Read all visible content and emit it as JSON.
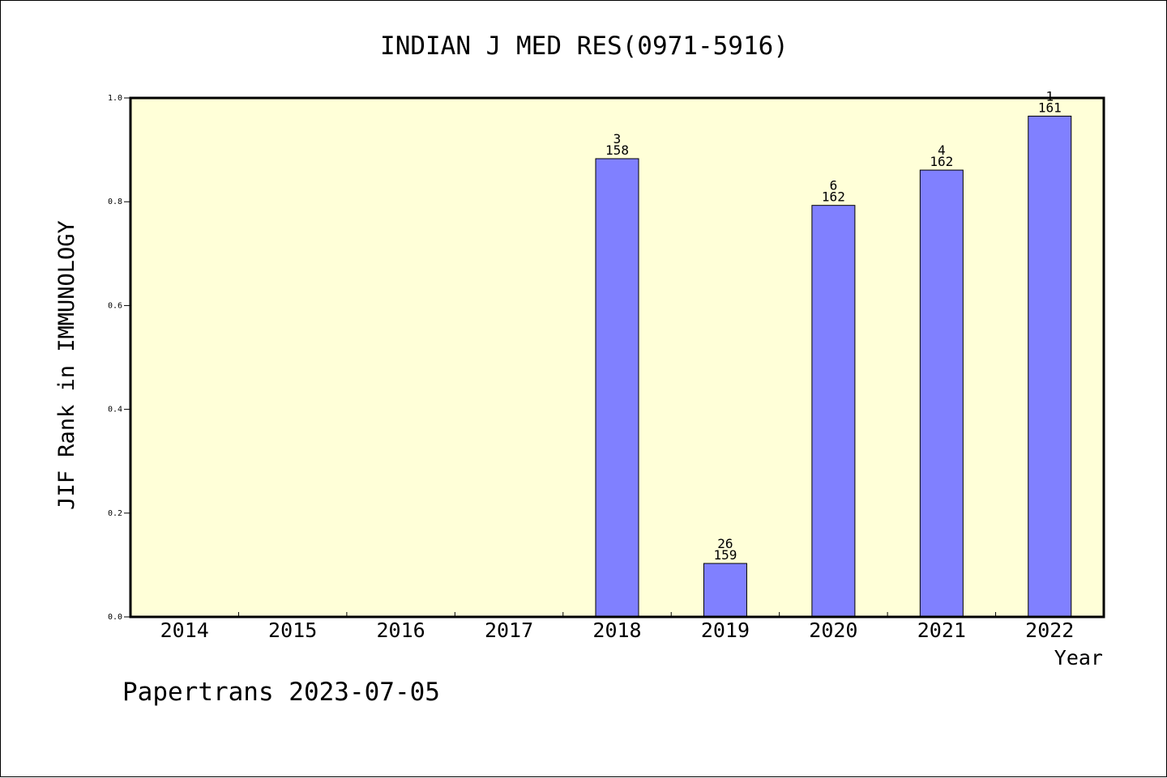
{
  "chart_data": {
    "type": "bar",
    "title": "INDIAN J MED RES(0971-5916)",
    "xlabel": "Year",
    "ylabel": "JIF Rank in IMMUNOLOGY",
    "ylim": [
      0,
      1.0
    ],
    "yticks": [
      "0.0",
      "0.2",
      "0.4",
      "0.6",
      "0.8",
      "1.0"
    ],
    "categories": [
      "2014",
      "2015",
      "2016",
      "2017",
      "2018",
      "2019",
      "2020",
      "2021",
      "2022"
    ],
    "values": [
      null,
      null,
      null,
      null,
      0.883,
      0.103,
      0.793,
      0.861,
      0.965
    ],
    "rank": [
      null,
      null,
      null,
      null,
      "3",
      "26",
      "6",
      "4",
      "1"
    ],
    "total": [
      null,
      null,
      null,
      null,
      "158",
      "159",
      "162",
      "162",
      "161"
    ],
    "grid": false,
    "legend": "none",
    "colors": {
      "bar": "#8080ff",
      "plot_bg": "#ffffd8"
    }
  },
  "footer": "Papertrans 2023-07-05"
}
